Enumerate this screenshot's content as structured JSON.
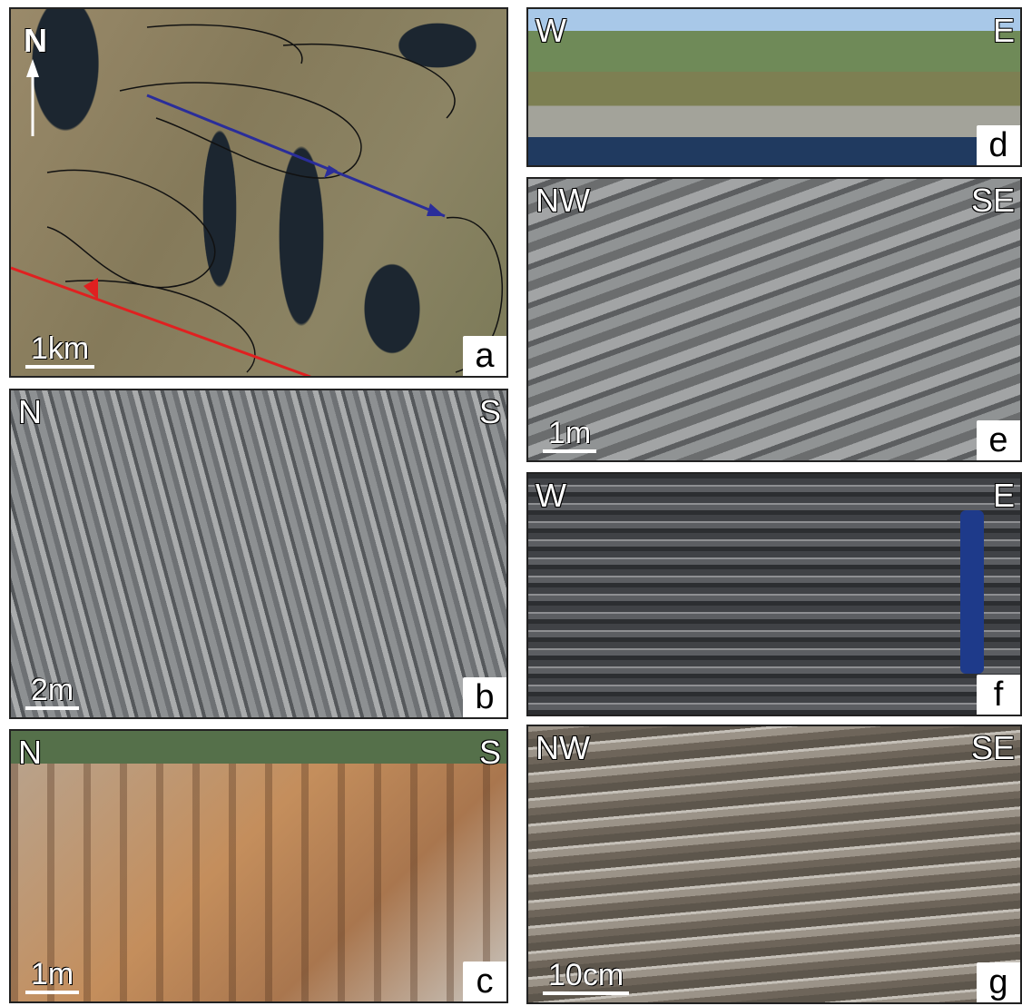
{
  "panels": [
    {
      "letter": "a",
      "north": "N",
      "scale": "1km"
    },
    {
      "letter": "b",
      "left": "N",
      "right": "S",
      "scale": "2m"
    },
    {
      "letter": "c",
      "left": "N",
      "right": "S",
      "scale": "1m"
    },
    {
      "letter": "d",
      "left": "W",
      "right": "E"
    },
    {
      "letter": "e",
      "left": "NW",
      "right": "SE",
      "scale": "1m"
    },
    {
      "letter": "f",
      "left": "W",
      "right": "E"
    },
    {
      "letter": "g",
      "left": "NW",
      "right": "SE",
      "scale": "10cm"
    }
  ]
}
